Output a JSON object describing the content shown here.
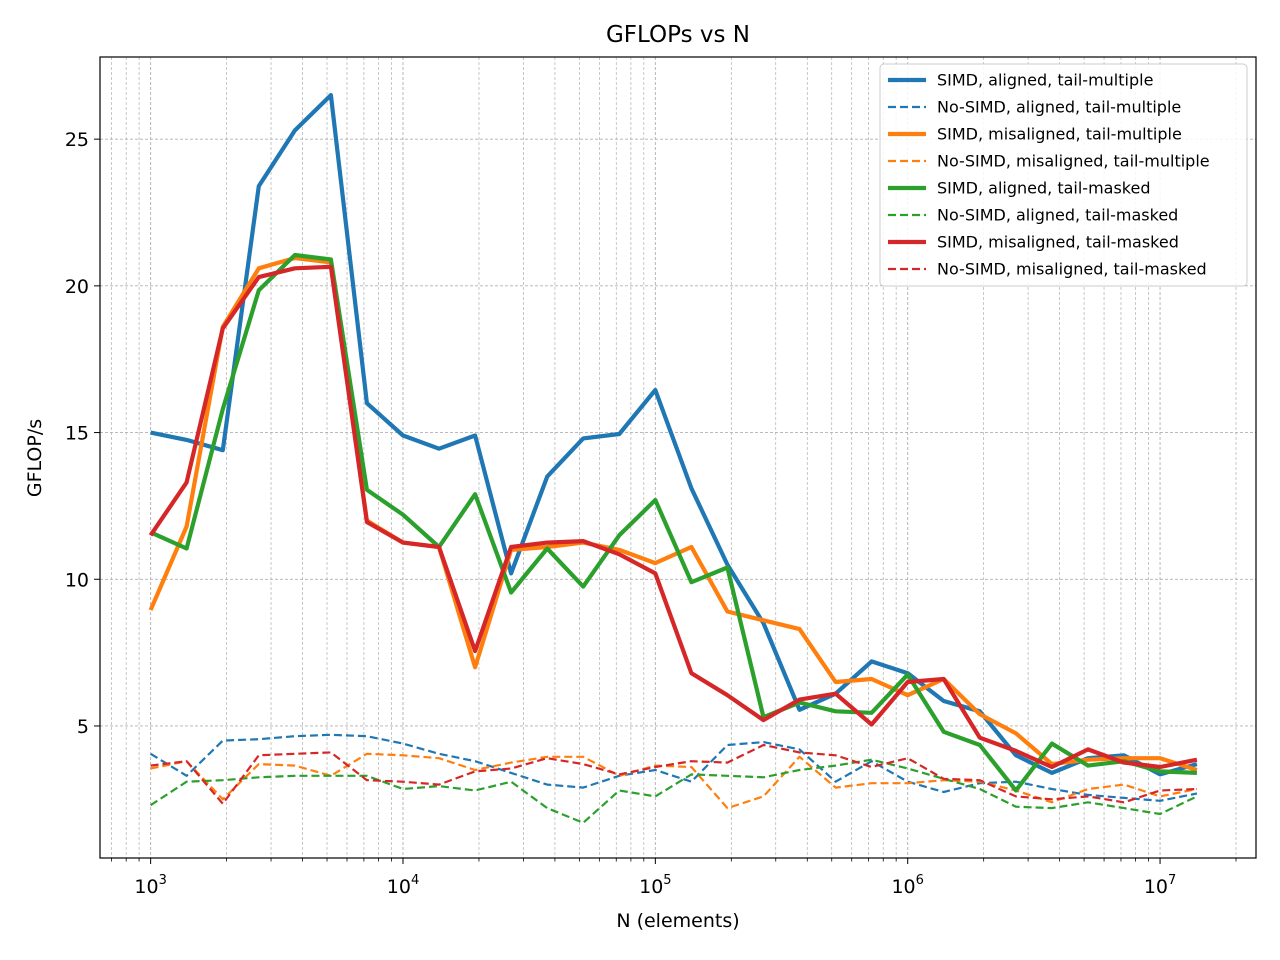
{
  "chart_data": {
    "type": "line",
    "title": "GFLOPs vs N",
    "xlabel": "N (elements)",
    "ylabel": "GFLOP/s",
    "xscale": "log",
    "xlim": [
      630,
      24000000
    ],
    "ylim": [
      0.5,
      27.8
    ],
    "grid": true,
    "legend_position": "top-right",
    "x": [
      1000,
      1389,
      1931,
      2683,
      3728,
      5179,
      7197,
      10000,
      13895,
      19307,
      26827,
      37276,
      51795,
      71969,
      100000,
      138950,
      193070,
      268270,
      372760,
      517950,
      719690,
      1000000,
      1389500,
      1930700,
      2682700,
      3727600,
      5179500,
      7196900,
      10000000,
      14000000
    ],
    "x_ticks": [
      {
        "value": 1000,
        "base": "10",
        "exp": "3"
      },
      {
        "value": 10000,
        "base": "10",
        "exp": "4"
      },
      {
        "value": 100000,
        "base": "10",
        "exp": "5"
      },
      {
        "value": 1000000,
        "base": "10",
        "exp": "6"
      },
      {
        "value": 10000000,
        "base": "10",
        "exp": "7"
      }
    ],
    "y_ticks": [
      5,
      10,
      15,
      20,
      25
    ],
    "series": [
      {
        "name": "SIMD, aligned, tail-multiple",
        "color": "#1f77b4",
        "style": "solid",
        "values": [
          15.0,
          14.75,
          14.4,
          23.4,
          25.3,
          26.5,
          16.0,
          14.9,
          14.45,
          14.9,
          10.2,
          13.5,
          14.8,
          14.95,
          16.45,
          13.1,
          10.5,
          8.5,
          5.55,
          6.1,
          7.2,
          6.8,
          5.85,
          5.5,
          4.0,
          3.4,
          3.9,
          4.0,
          3.35,
          3.7
        ]
      },
      {
        "name": "No-SIMD, aligned, tail-multiple",
        "color": "#1f77b4",
        "style": "dashed",
        "values": [
          4.05,
          3.3,
          4.5,
          4.55,
          4.65,
          4.7,
          4.65,
          4.4,
          4.05,
          3.8,
          3.4,
          3.0,
          2.9,
          3.3,
          3.5,
          3.1,
          4.35,
          4.45,
          4.2,
          3.1,
          3.8,
          3.1,
          2.75,
          3.05,
          3.1,
          2.85,
          2.65,
          2.55,
          2.45,
          2.7
        ]
      },
      {
        "name": "SIMD, misaligned, tail-multiple",
        "color": "#ff7f0e",
        "style": "solid",
        "values": [
          8.95,
          11.8,
          18.6,
          20.6,
          20.95,
          20.8,
          12.0,
          11.25,
          11.1,
          7.0,
          11.0,
          11.1,
          11.25,
          11.0,
          10.55,
          11.1,
          8.9,
          8.6,
          8.3,
          6.5,
          6.6,
          6.05,
          6.6,
          5.4,
          4.75,
          3.7,
          3.85,
          3.9,
          3.9,
          3.5
        ]
      },
      {
        "name": "No-SIMD, misaligned, tail-multiple",
        "color": "#ff7f0e",
        "style": "dashed",
        "values": [
          3.55,
          3.8,
          2.5,
          3.7,
          3.65,
          3.3,
          4.05,
          4.0,
          3.9,
          3.5,
          3.75,
          3.95,
          3.95,
          3.3,
          3.65,
          3.6,
          2.2,
          2.6,
          3.95,
          2.9,
          3.05,
          3.05,
          3.15,
          3.1,
          2.8,
          2.4,
          2.85,
          3.0,
          2.6,
          2.85
        ]
      },
      {
        "name": "SIMD, aligned, tail-masked",
        "color": "#2ca02c",
        "style": "solid",
        "values": [
          11.6,
          11.05,
          15.8,
          19.85,
          21.05,
          20.9,
          13.05,
          12.2,
          11.1,
          12.9,
          9.55,
          11.05,
          9.75,
          11.5,
          12.7,
          9.9,
          10.4,
          5.3,
          5.8,
          5.5,
          5.45,
          6.75,
          4.8,
          4.35,
          2.8,
          4.4,
          3.65,
          3.8,
          3.45,
          3.4
        ]
      },
      {
        "name": "No-SIMD, aligned, tail-masked",
        "color": "#2ca02c",
        "style": "dashed",
        "values": [
          2.3,
          3.1,
          3.15,
          3.25,
          3.3,
          3.3,
          3.3,
          2.85,
          2.95,
          2.8,
          3.1,
          2.2,
          1.7,
          2.8,
          2.6,
          3.35,
          3.3,
          3.25,
          3.5,
          3.65,
          3.85,
          3.55,
          3.2,
          2.85,
          2.25,
          2.2,
          2.4,
          2.2,
          2.0,
          2.6
        ]
      },
      {
        "name": "SIMD, misaligned, tail-masked",
        "color": "#d62728",
        "style": "solid",
        "values": [
          11.5,
          13.3,
          18.55,
          20.3,
          20.6,
          20.65,
          11.95,
          11.25,
          11.1,
          7.55,
          11.1,
          11.25,
          11.3,
          10.85,
          10.2,
          6.8,
          6.05,
          5.2,
          5.9,
          6.1,
          5.05,
          6.5,
          6.6,
          4.6,
          4.15,
          3.6,
          4.2,
          3.75,
          3.6,
          3.85
        ]
      },
      {
        "name": "No-SIMD, misaligned, tail-masked",
        "color": "#d62728",
        "style": "dashed",
        "values": [
          3.65,
          3.8,
          2.35,
          4.0,
          4.05,
          4.1,
          3.15,
          3.1,
          3.0,
          3.45,
          3.55,
          3.9,
          3.7,
          3.35,
          3.6,
          3.8,
          3.75,
          4.35,
          4.1,
          4.0,
          3.6,
          3.9,
          3.2,
          3.15,
          2.6,
          2.5,
          2.6,
          2.4,
          2.8,
          2.85
        ]
      }
    ]
  }
}
